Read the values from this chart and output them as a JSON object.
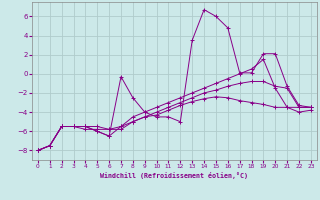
{
  "xlabel": "Windchill (Refroidissement éolien,°C)",
  "xlim": [
    -0.5,
    23.5
  ],
  "ylim": [
    -9,
    7.5
  ],
  "xticks": [
    0,
    1,
    2,
    3,
    4,
    5,
    6,
    7,
    8,
    9,
    10,
    11,
    12,
    13,
    14,
    15,
    16,
    17,
    18,
    19,
    20,
    21,
    22,
    23
  ],
  "yticks": [
    -8,
    -6,
    -4,
    -2,
    0,
    2,
    4,
    6
  ],
  "bg_color": "#cce9e9",
  "grid_color": "#b0cccc",
  "line_color": "#880088",
  "lines": [
    {
      "x": [
        0,
        1,
        2,
        3,
        4,
        5,
        6,
        7,
        8,
        9,
        10,
        11,
        12,
        13,
        14,
        15,
        16,
        17,
        18,
        19,
        20,
        21,
        22,
        23
      ],
      "y": [
        -8.0,
        -7.5,
        -5.5,
        -5.5,
        -5.5,
        -6.0,
        -6.5,
        -0.3,
        -2.5,
        -4.0,
        -4.5,
        -4.5,
        -5.0,
        3.5,
        6.7,
        6.0,
        4.8,
        0.1,
        0.1,
        2.1,
        2.1,
        -1.3,
        -3.3,
        -3.5
      ]
    },
    {
      "x": [
        0,
        1,
        2,
        3,
        4,
        5,
        6,
        7,
        8,
        9,
        10,
        11,
        12,
        13,
        14,
        15,
        16,
        17,
        18,
        19,
        20,
        21,
        22,
        23
      ],
      "y": [
        -8.0,
        -7.5,
        -5.5,
        -5.5,
        -5.8,
        -5.8,
        -5.8,
        -5.8,
        -5.0,
        -4.5,
        -4.3,
        -3.8,
        -3.3,
        -2.9,
        -2.6,
        -2.4,
        -2.5,
        -2.8,
        -3.0,
        -3.2,
        -3.5,
        -3.5,
        -3.5,
        -3.5
      ]
    },
    {
      "x": [
        0,
        1,
        2,
        3,
        4,
        5,
        6,
        7,
        8,
        9,
        10,
        11,
        12,
        13,
        14,
        15,
        16,
        17,
        18,
        19,
        20,
        21,
        22,
        23
      ],
      "y": [
        -8.0,
        -7.5,
        -5.5,
        -5.5,
        -5.5,
        -5.5,
        -5.8,
        -5.5,
        -5.0,
        -4.5,
        -4.0,
        -3.5,
        -3.0,
        -2.5,
        -2.0,
        -1.7,
        -1.3,
        -1.0,
        -0.8,
        -0.8,
        -1.3,
        -1.5,
        -3.5,
        -3.5
      ]
    },
    {
      "x": [
        0,
        1,
        2,
        3,
        4,
        5,
        6,
        7,
        8,
        9,
        10,
        11,
        12,
        13,
        14,
        15,
        16,
        17,
        18,
        19,
        20,
        21,
        22,
        23
      ],
      "y": [
        -8.0,
        -7.5,
        -5.5,
        -5.5,
        -5.5,
        -6.0,
        -6.5,
        -5.5,
        -4.5,
        -4.0,
        -3.5,
        -3.0,
        -2.5,
        -2.0,
        -1.5,
        -1.0,
        -0.5,
        0.0,
        0.5,
        1.5,
        -1.5,
        -3.5,
        -4.0,
        -3.8
      ]
    }
  ]
}
